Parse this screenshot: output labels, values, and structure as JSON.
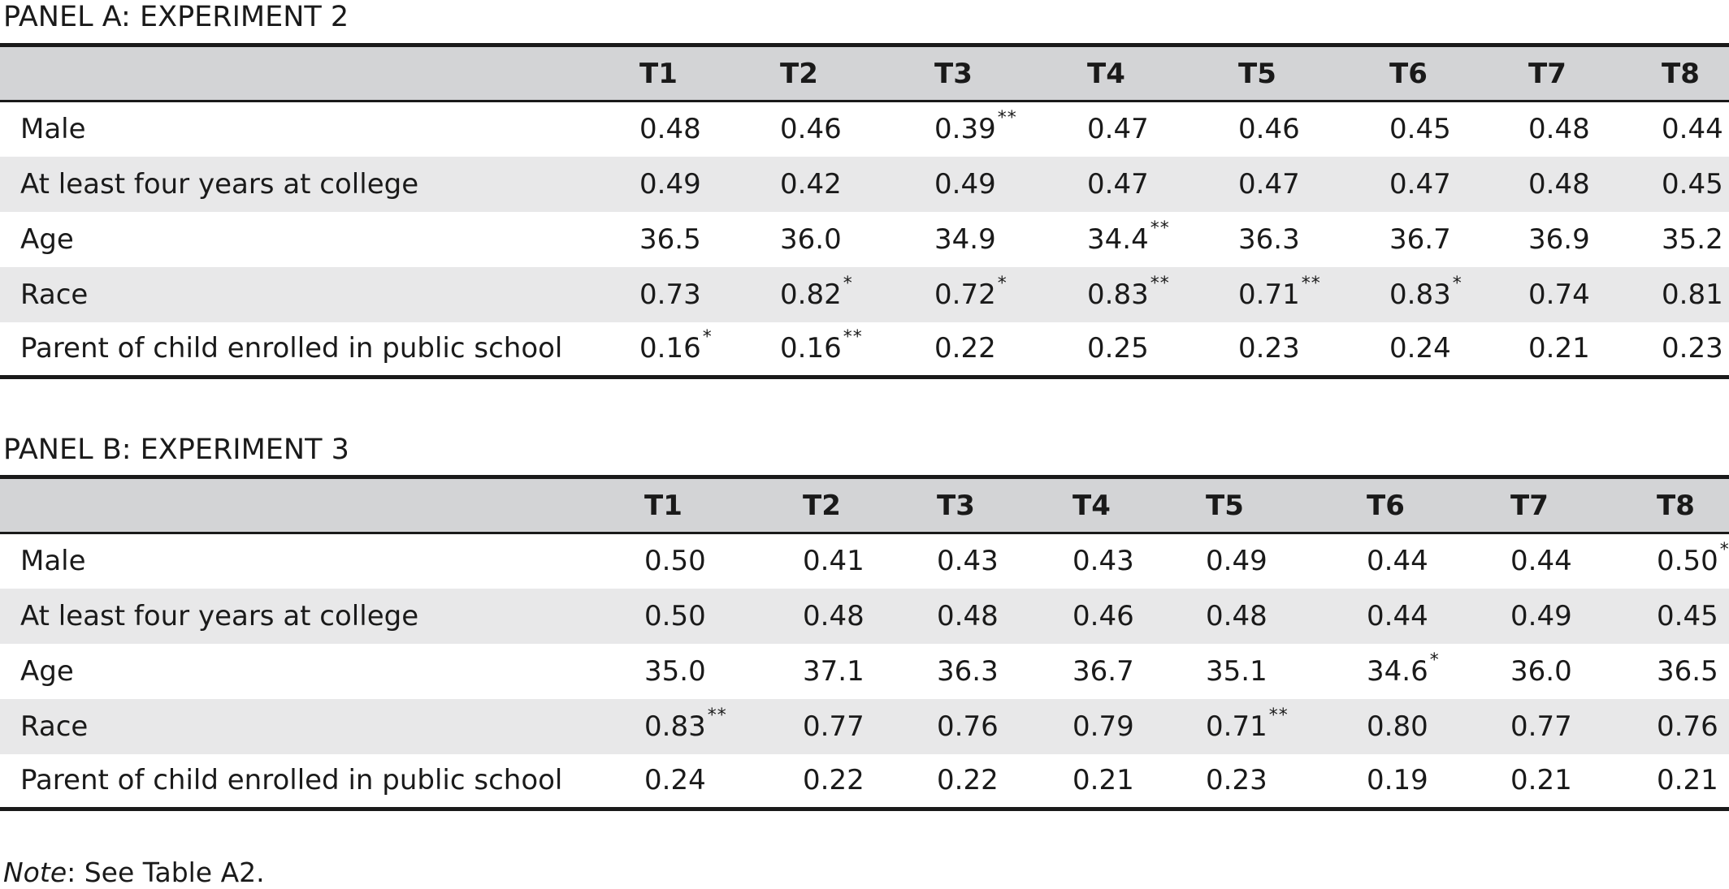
{
  "panels": [
    {
      "title": "PANEL A: EXPERIMENT 2",
      "columns": [
        "T1",
        "T2",
        "T3",
        "T4",
        "T5",
        "T6",
        "T7",
        "T8"
      ],
      "rows": [
        {
          "label": "Male",
          "values": [
            "0.48",
            "0.46",
            "0.39",
            "0.47",
            "0.46",
            "0.45",
            "0.48",
            "0.44"
          ],
          "sig": [
            "",
            "",
            "**",
            "",
            "",
            "",
            "",
            ""
          ]
        },
        {
          "label": "At least four years at college",
          "values": [
            "0.49",
            "0.42",
            "0.49",
            "0.47",
            "0.47",
            "0.47",
            "0.48",
            "0.45"
          ],
          "sig": [
            "",
            "",
            "",
            "",
            "",
            "",
            "",
            ""
          ]
        },
        {
          "label": "Age",
          "values": [
            "36.5",
            "36.0",
            "34.9",
            "34.4",
            "36.3",
            "36.7",
            "36.9",
            "35.2"
          ],
          "sig": [
            "",
            "",
            "",
            "**",
            "",
            "",
            "",
            ""
          ]
        },
        {
          "label": "Race",
          "values": [
            "0.73",
            "0.82",
            "0.72",
            "0.83",
            "0.71",
            "0.83",
            "0.74",
            "0.81"
          ],
          "sig": [
            "",
            "*",
            "*",
            "**",
            "**",
            "*",
            "",
            ""
          ]
        },
        {
          "label": "Parent of child enrolled in public school",
          "values": [
            "0.16",
            "0.16",
            "0.22",
            "0.25",
            "0.23",
            "0.24",
            "0.21",
            "0.23"
          ],
          "sig": [
            "*",
            "**",
            "",
            "",
            "",
            "",
            "",
            ""
          ]
        }
      ]
    },
    {
      "title": "PANEL B: EXPERIMENT 3",
      "columns": [
        "T1",
        "T2",
        "T3",
        "T4",
        "T5",
        "T6",
        "T7",
        "T8"
      ],
      "rows": [
        {
          "label": "Male",
          "values": [
            "0.50",
            "0.41",
            "0.43",
            "0.43",
            "0.49",
            "0.44",
            "0.44",
            "0.50"
          ],
          "sig": [
            "",
            "",
            "",
            "",
            "",
            "",
            "",
            "*"
          ]
        },
        {
          "label": "At least four years at college",
          "values": [
            "0.50",
            "0.48",
            "0.48",
            "0.46",
            "0.48",
            "0.44",
            "0.49",
            "0.45"
          ],
          "sig": [
            "",
            "",
            "",
            "",
            "",
            "",
            "",
            ""
          ]
        },
        {
          "label": "Age",
          "values": [
            "35.0",
            "37.1",
            "36.3",
            "36.7",
            "35.1",
            "34.6",
            "36.0",
            "36.5"
          ],
          "sig": [
            "",
            "",
            "",
            "",
            "",
            "*",
            "",
            ""
          ]
        },
        {
          "label": "Race",
          "values": [
            "0.83",
            "0.77",
            "0.76",
            "0.79",
            "0.71",
            "0.80",
            "0.77",
            "0.76"
          ],
          "sig": [
            "**",
            "",
            "",
            "",
            "**",
            "",
            "",
            ""
          ]
        },
        {
          "label": "Parent of child enrolled in public school",
          "values": [
            "0.24",
            "0.22",
            "0.22",
            "0.21",
            "0.23",
            "0.19",
            "0.21",
            "0.21"
          ],
          "sig": [
            "",
            "",
            "",
            "",
            "",
            "",
            "",
            ""
          ]
        }
      ]
    }
  ],
  "note": {
    "prefix": "Note",
    "text": ": See Table A2."
  }
}
